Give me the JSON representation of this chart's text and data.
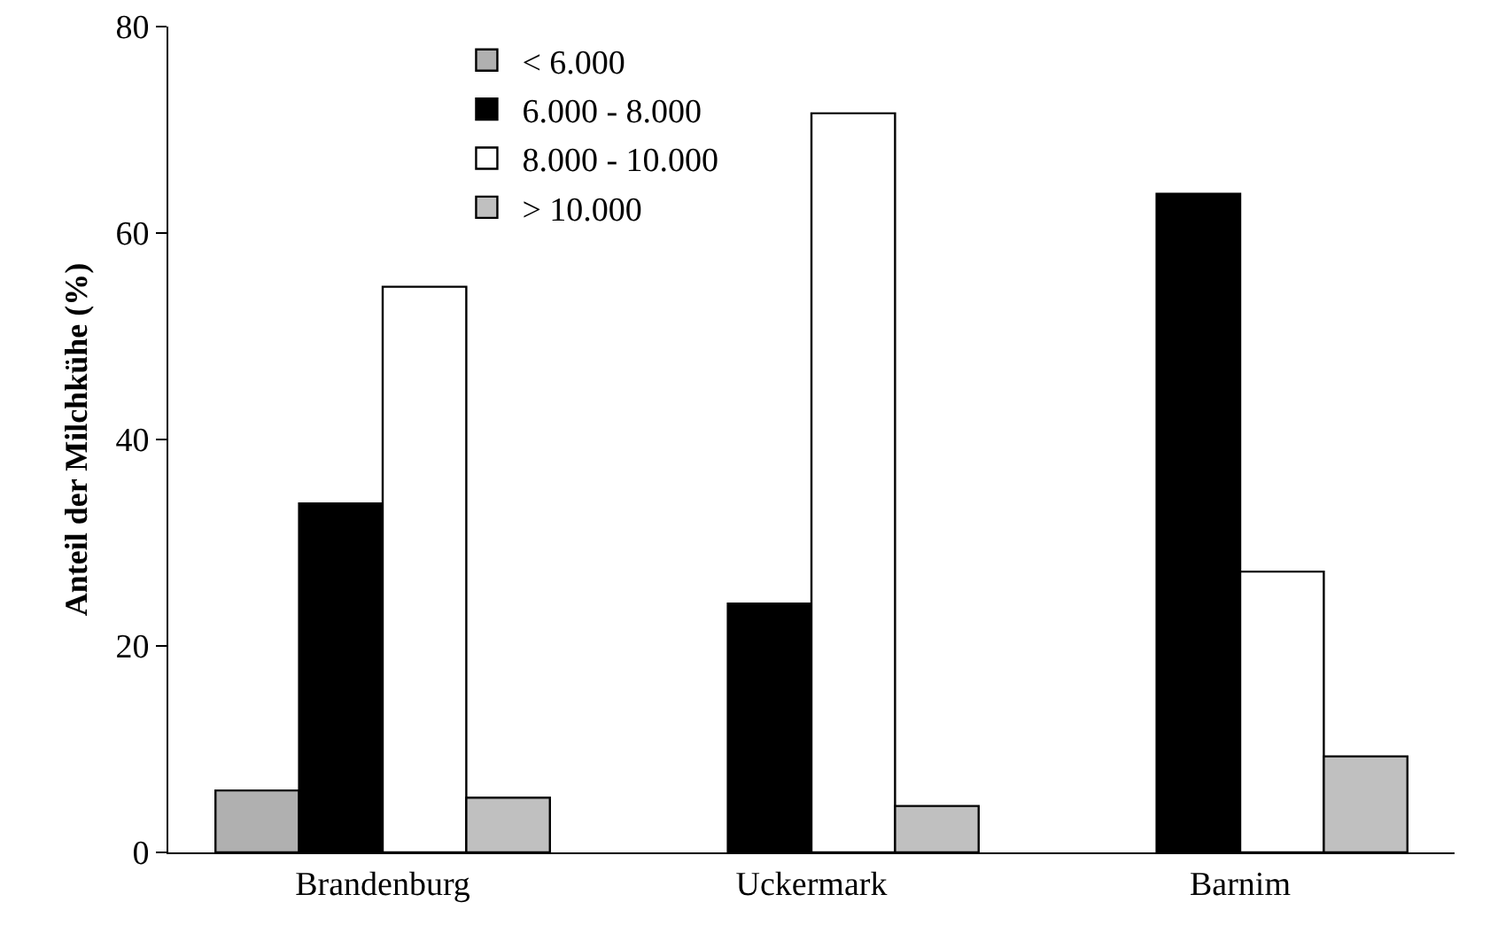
{
  "chart_data": {
    "type": "bar",
    "ylabel": "Anteil der Milchkühe (%)",
    "categories": [
      "Brandenburg",
      "Uckermark",
      "Barnim"
    ],
    "series": [
      {
        "name": "< 6.000",
        "color": "#b0b0b0",
        "values": [
          6.0,
          null,
          null
        ]
      },
      {
        "name": "6.000 - 8.000",
        "color": "#000000",
        "values": [
          33.8,
          24.1,
          63.8
        ]
      },
      {
        "name": "8.000 - 10.000",
        "color": "#ffffff",
        "values": [
          54.8,
          71.6,
          27.2
        ]
      },
      {
        "name": "> 10.000",
        "color": "#c0c0c0",
        "values": [
          5.3,
          4.5,
          9.3
        ]
      }
    ],
    "ylim": [
      0,
      80
    ],
    "yticks": [
      0,
      20,
      40,
      60,
      80
    ],
    "grid": false,
    "legend": "top left"
  }
}
